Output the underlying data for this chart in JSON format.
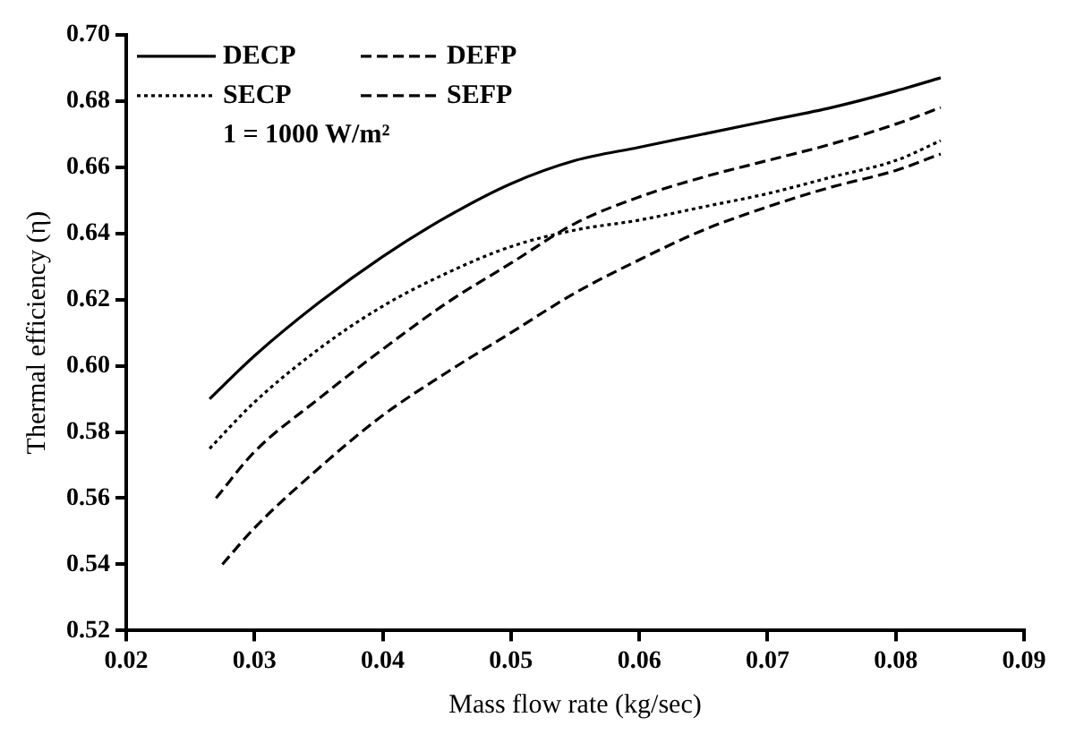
{
  "chart_data": {
    "type": "line",
    "xlabel": "Mass flow rate (kg/sec)",
    "ylabel": "Thermal efficiency (η)",
    "xlim": [
      0.02,
      0.09
    ],
    "xticks": [
      0.02,
      0.03,
      0.04,
      0.05,
      0.06,
      0.07,
      0.08,
      0.09
    ],
    "ylim": [
      0.52,
      0.7
    ],
    "yticks": [
      0.52,
      0.54,
      0.56,
      0.58,
      {
        "value": 0.6,
        "label": "0.60"
      },
      0.62,
      0.64,
      0.66,
      0.68,
      {
        "value": 0.7,
        "label": "0.70"
      }
    ],
    "grid": false,
    "legend": "top left",
    "marker": "none",
    "annotations": [
      "1 = 1000 W/m²"
    ],
    "x": [
      0.0265,
      0.03,
      0.035,
      0.04,
      0.045,
      0.05,
      0.055,
      0.06,
      0.065,
      0.07,
      0.075,
      0.08,
      0.0835
    ],
    "series": [
      {
        "name": "DECP",
        "color": "#000000",
        "line_style": "solid",
        "values": [
          0.59,
          0.603,
          0.619,
          0.633,
          0.645,
          0.655,
          0.662,
          0.666,
          0.67,
          0.674,
          0.678,
          0.683,
          0.687
        ]
      },
      {
        "name": "DEFP",
        "color": "#000000",
        "line_style": "dashed",
        "x": [
          0.027,
          0.03,
          0.035,
          0.04,
          0.045,
          0.05,
          0.055,
          0.06,
          0.065,
          0.07,
          0.075,
          0.08,
          0.0835
        ],
        "values": [
          0.56,
          0.574,
          0.59,
          0.605,
          0.619,
          0.631,
          0.643,
          0.651,
          0.657,
          0.662,
          0.667,
          0.673,
          0.678
        ]
      },
      {
        "name": "SECP",
        "color": "#000000",
        "line_style": "dotted",
        "values": [
          0.575,
          0.589,
          0.605,
          0.618,
          0.628,
          0.636,
          0.641,
          0.644,
          0.648,
          0.652,
          0.657,
          0.662,
          0.668
        ]
      },
      {
        "name": "SEFP",
        "color": "#000000",
        "line_style": "dashed",
        "x": [
          0.0275,
          0.03,
          0.035,
          0.04,
          0.045,
          0.05,
          0.055,
          0.06,
          0.065,
          0.07,
          0.075,
          0.08,
          0.0835
        ],
        "values": [
          0.54,
          0.551,
          0.569,
          0.585,
          0.598,
          0.61,
          0.622,
          0.632,
          0.641,
          0.648,
          0.654,
          0.659,
          0.664
        ]
      }
    ]
  }
}
